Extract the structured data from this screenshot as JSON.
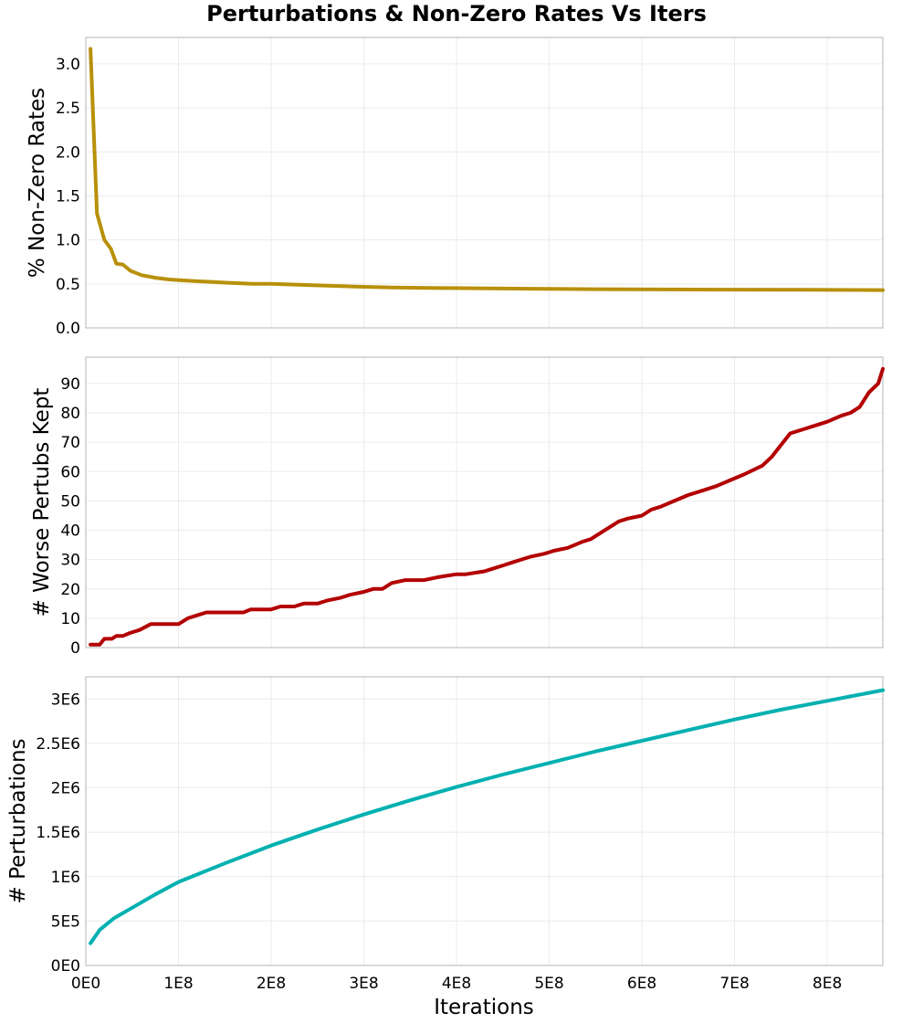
{
  "chart_data": {
    "type": "line",
    "title": "Perturbations & Non-Zero Rates Vs Iters",
    "xlabel": "Iterations",
    "xlim": [
      0,
      860000000
    ],
    "x_ticks": [
      0,
      100000000,
      200000000,
      300000000,
      400000000,
      500000000,
      600000000,
      700000000,
      800000000
    ],
    "x_tick_labels": [
      "0E0",
      "1E8",
      "2E8",
      "3E8",
      "4E8",
      "5E8",
      "6E8",
      "7E8",
      "8E8"
    ],
    "grid": true,
    "panels": [
      {
        "ylabel": "% Non-Zero Rates",
        "color": "#b8900a",
        "ylim": [
          0,
          3.3
        ],
        "y_ticks": [
          0,
          0.5,
          1.0,
          1.5,
          2.0,
          2.5,
          3.0
        ],
        "y_tick_labels": [
          "0.0",
          "0.5",
          "1.0",
          "1.5",
          "2.0",
          "2.5",
          "3.0"
        ],
        "x": [
          5000000,
          12000000,
          20000000,
          27000000,
          33000000,
          40000000,
          48000000,
          60000000,
          75000000,
          90000000,
          105000000,
          120000000,
          140000000,
          160000000,
          180000000,
          200000000,
          230000000,
          260000000,
          290000000,
          330000000,
          370000000,
          420000000,
          480000000,
          550000000,
          620000000,
          700000000,
          780000000,
          860000000
        ],
        "y": [
          3.17,
          1.3,
          1.0,
          0.9,
          0.73,
          0.72,
          0.65,
          0.6,
          0.57,
          0.55,
          0.54,
          0.53,
          0.52,
          0.51,
          0.5,
          0.5,
          0.49,
          0.48,
          0.47,
          0.46,
          0.455,
          0.45,
          0.445,
          0.44,
          0.437,
          0.435,
          0.433,
          0.43
        ]
      },
      {
        "ylabel": "# Worse Pertubs Kept",
        "color": "#b30000",
        "ylim": [
          0,
          99
        ],
        "y_ticks": [
          0,
          10,
          20,
          30,
          40,
          50,
          60,
          70,
          80,
          90
        ],
        "y_tick_labels": [
          "0",
          "10",
          "20",
          "30",
          "40",
          "50",
          "60",
          "70",
          "80",
          "90"
        ],
        "x": [
          5000000,
          15000000,
          20000000,
          28000000,
          33000000,
          40000000,
          48000000,
          58000000,
          70000000,
          100000000,
          110000000,
          120000000,
          130000000,
          170000000,
          178000000,
          200000000,
          210000000,
          225000000,
          235000000,
          250000000,
          260000000,
          275000000,
          285000000,
          300000000,
          310000000,
          320000000,
          330000000,
          345000000,
          355000000,
          365000000,
          380000000,
          400000000,
          410000000,
          430000000,
          440000000,
          450000000,
          460000000,
          470000000,
          480000000,
          495000000,
          505000000,
          520000000,
          535000000,
          545000000,
          555000000,
          565000000,
          575000000,
          585000000,
          600000000,
          610000000,
          620000000,
          635000000,
          650000000,
          660000000,
          680000000,
          695000000,
          710000000,
          730000000,
          740000000,
          750000000,
          760000000,
          780000000,
          800000000,
          815000000,
          825000000,
          835000000,
          845000000,
          855000000,
          860000000
        ],
        "y": [
          1,
          1,
          3,
          3,
          4,
          4,
          5,
          6,
          8,
          8,
          10,
          11,
          12,
          12,
          13,
          13,
          14,
          14,
          15,
          15,
          16,
          17,
          18,
          19,
          20,
          20,
          22,
          23,
          23,
          23,
          24,
          25,
          25,
          26,
          27,
          28,
          29,
          30,
          31,
          32,
          33,
          34,
          36,
          37,
          39,
          41,
          43,
          44,
          45,
          47,
          48,
          50,
          52,
          53,
          55,
          57,
          59,
          62,
          65,
          69,
          73,
          75,
          77,
          79,
          80,
          82,
          87,
          90,
          95
        ]
      },
      {
        "ylabel": "# Perturbations",
        "color": "#00b0b0",
        "ylim": [
          0,
          3250000
        ],
        "y_ticks": [
          0,
          500000,
          1000000,
          1500000,
          2000000,
          2500000,
          3000000
        ],
        "y_tick_labels": [
          "0E0",
          "5E5",
          "1E6",
          "1.5E6",
          "2E6",
          "2.5E6",
          "3E6"
        ],
        "x": [
          5000000,
          15000000,
          30000000,
          50000000,
          75000000,
          100000000,
          150000000,
          200000000,
          250000000,
          300000000,
          350000000,
          400000000,
          450000000,
          500000000,
          550000000,
          600000000,
          650000000,
          700000000,
          750000000,
          800000000,
          860000000
        ],
        "y": [
          250000,
          400000,
          530000,
          650000,
          800000,
          940000,
          1150000,
          1350000,
          1530000,
          1700000,
          1860000,
          2010000,
          2150000,
          2280000,
          2410000,
          2530000,
          2650000,
          2770000,
          2880000,
          2980000,
          3100000
        ]
      }
    ]
  }
}
